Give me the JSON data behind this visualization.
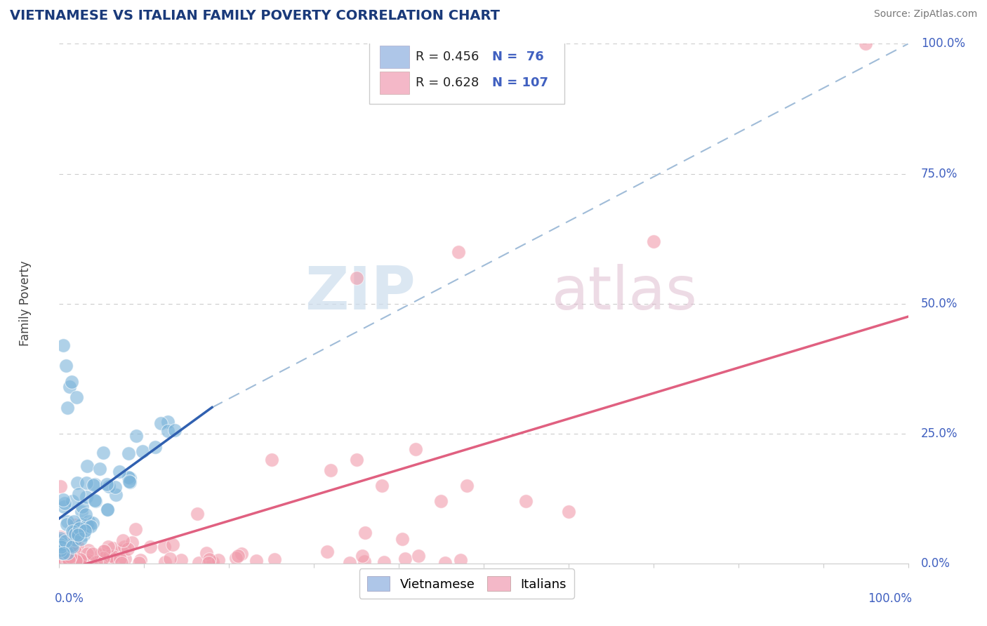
{
  "title": "VIETNAMESE VS ITALIAN FAMILY POVERTY CORRELATION CHART",
  "source": "Source: ZipAtlas.com",
  "ylabel": "Family Poverty",
  "watermark_zip": "ZIP",
  "watermark_atlas": "atlas",
  "viet_color": "#7ab3d9",
  "viet_edge_color": "#5a9abf",
  "ital_color": "#f09aaa",
  "ital_edge_color": "#e07080",
  "viet_line_color": "#3060b0",
  "ital_line_color": "#e06080",
  "dash_line_color": "#a0bcd8",
  "viet_R": 0.456,
  "viet_N": 76,
  "ital_R": 0.628,
  "ital_N": 107,
  "title_color": "#1a3a7a",
  "source_color": "#777777",
  "axis_label_color": "#4060c0",
  "background_color": "#ffffff",
  "grid_color": "#cccccc",
  "legend_box_color": "#aec6e8",
  "legend_box_color2": "#f4b8c8"
}
